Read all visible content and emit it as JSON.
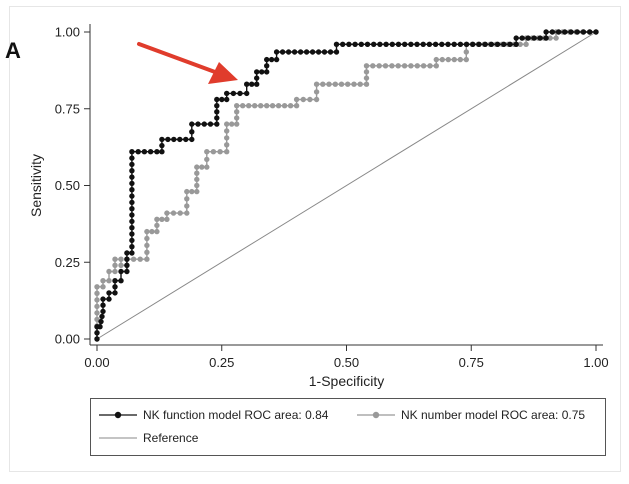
{
  "panel_label": "A",
  "chart_data": {
    "type": "line",
    "xlabel": "1-Specificity",
    "ylabel": "Sensitivity",
    "xlim": [
      0,
      1
    ],
    "ylim": [
      0,
      1
    ],
    "x_ticks": [
      "0.00",
      "0.25",
      "0.50",
      "0.75",
      "1.00"
    ],
    "y_ticks": [
      "0.00",
      "0.25",
      "0.50",
      "0.75",
      "1.00"
    ],
    "grid": false,
    "legend_position": "bottom",
    "series": [
      {
        "name": "NK function model ROC area: 0.84",
        "color": "#111111",
        "marker": "filled-circle",
        "x": [
          0,
          0,
          0.006,
          0.012,
          0.012,
          0.024,
          0.024,
          0.036,
          0.036,
          0.048,
          0.048,
          0.06,
          0.06,
          0.07,
          0.07,
          0.12,
          0.13,
          0.13,
          0.19,
          0.19,
          0.24,
          0.24,
          0.26,
          0.26,
          0.3,
          0.3,
          0.32,
          0.32,
          0.34,
          0.34,
          0.36,
          0.36,
          0.48,
          0.48,
          0.84,
          0.84,
          0.9,
          0.9,
          1.0
        ],
        "y": [
          0,
          0.04,
          0.04,
          0.09,
          0.13,
          0.13,
          0.15,
          0.15,
          0.19,
          0.19,
          0.22,
          0.22,
          0.28,
          0.28,
          0.61,
          0.61,
          0.61,
          0.65,
          0.65,
          0.7,
          0.7,
          0.78,
          0.78,
          0.8,
          0.8,
          0.83,
          0.83,
          0.87,
          0.87,
          0.91,
          0.91,
          0.935,
          0.935,
          0.96,
          0.96,
          0.98,
          0.98,
          1.0,
          1.0
        ]
      },
      {
        "name": "NK number model ROC area: 0.75",
        "color": "#999999",
        "marker": "filled-circle",
        "x": [
          0,
          0,
          0.012,
          0.012,
          0.024,
          0.024,
          0.036,
          0.036,
          0.048,
          0.048,
          0.06,
          0.06,
          0.1,
          0.1,
          0.12,
          0.12,
          0.14,
          0.14,
          0.18,
          0.18,
          0.2,
          0.2,
          0.22,
          0.22,
          0.26,
          0.26,
          0.28,
          0.28,
          0.4,
          0.4,
          0.44,
          0.44,
          0.54,
          0.54,
          0.68,
          0.68,
          0.74,
          0.74,
          0.86,
          0.86,
          0.92,
          0.92,
          1.0
        ],
        "y": [
          0,
          0.17,
          0.17,
          0.19,
          0.19,
          0.22,
          0.22,
          0.26,
          0.26,
          0.24,
          0.24,
          0.26,
          0.26,
          0.35,
          0.35,
          0.39,
          0.39,
          0.41,
          0.41,
          0.48,
          0.48,
          0.56,
          0.56,
          0.61,
          0.61,
          0.7,
          0.7,
          0.76,
          0.76,
          0.78,
          0.78,
          0.83,
          0.83,
          0.89,
          0.89,
          0.91,
          0.91,
          0.96,
          0.96,
          0.98,
          0.98,
          1.0,
          1.0
        ]
      },
      {
        "name": "Reference",
        "color": "#888888",
        "marker": "none",
        "x": [
          0,
          1
        ],
        "y": [
          0,
          1
        ]
      }
    ]
  },
  "arrow": {
    "color": "#e03c2c"
  },
  "legend": {
    "item1": "NK function model ROC area: 0.84",
    "item2": "NK number model ROC area: 0.75",
    "item3": "Reference"
  }
}
